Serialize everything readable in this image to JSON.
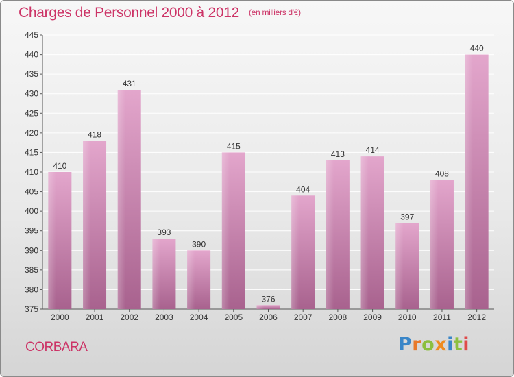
{
  "header": {
    "title": "Charges de Personnel 2000 à 2012",
    "subtitle": "(en milliers d'€)"
  },
  "commune": "CORBARA",
  "logo": {
    "letters": [
      "P",
      "r",
      "o",
      "x",
      "i",
      "t",
      "i"
    ]
  },
  "colors": {
    "title": "#cc3366",
    "bar_light": "#e3a6cc",
    "bar_dark": "#a8628e"
  },
  "chart_data": {
    "type": "bar",
    "title": "Charges de Personnel 2000 à 2012",
    "subtitle": "(en milliers d'€)",
    "xlabel": "",
    "ylabel": "",
    "categories": [
      "2000",
      "2001",
      "2002",
      "2003",
      "2004",
      "2005",
      "2006",
      "2007",
      "2008",
      "2009",
      "2010",
      "2011",
      "2012"
    ],
    "values": [
      410,
      418,
      431,
      393,
      390,
      415,
      376,
      404,
      413,
      414,
      397,
      408,
      440
    ],
    "ylim": [
      375,
      445
    ],
    "yticks": [
      375,
      380,
      385,
      390,
      395,
      400,
      405,
      410,
      415,
      420,
      425,
      430,
      435,
      440,
      445
    ],
    "grid": true,
    "legend": "none"
  }
}
